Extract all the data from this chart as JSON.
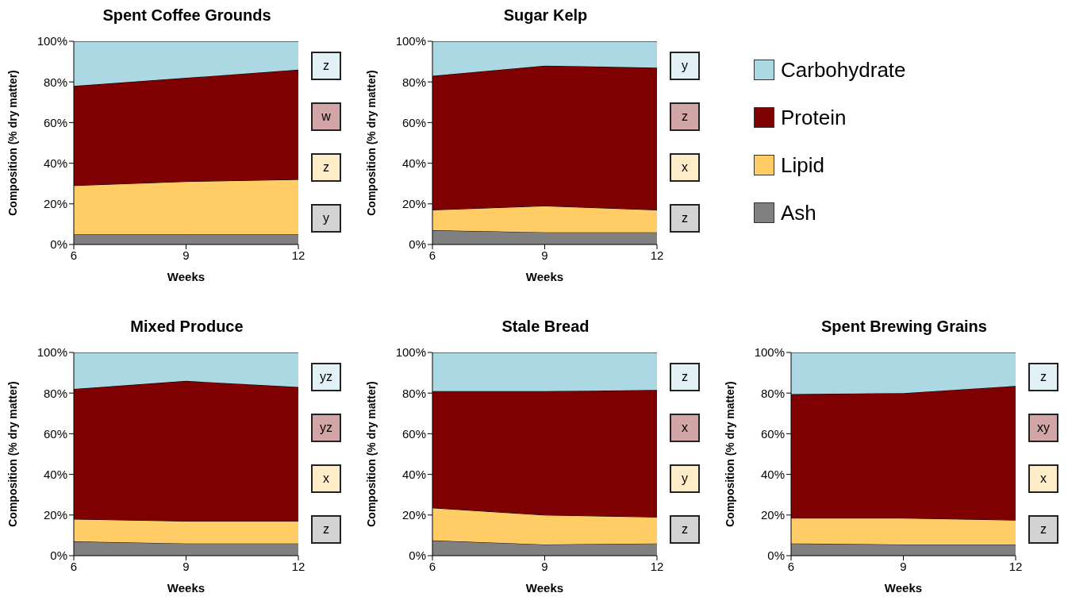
{
  "chart_data": [
    {
      "type": "area",
      "title": "Spent Coffee Grounds",
      "xlabel": "Weeks",
      "ylabel": "Composition (% dry matter)",
      "stacked": true,
      "x": [
        6,
        9,
        12
      ],
      "xlim": [
        6,
        12
      ],
      "xticks": [
        6,
        9,
        12
      ],
      "ylim": [
        0,
        100
      ],
      "yticks": [
        {
          "value": 0,
          "label": "0%"
        },
        {
          "value": 20,
          "label": "20%"
        },
        {
          "value": 40,
          "label": "40%"
        },
        {
          "value": 60,
          "label": "60%"
        },
        {
          "value": 80,
          "label": "80%"
        },
        {
          "value": 100,
          "label": "100%"
        }
      ],
      "grid": false,
      "legend": false,
      "series": [
        {
          "color": "#808080",
          "values": [
            5,
            5,
            5
          ]
        },
        {
          "color": "#ffcc66",
          "values": [
            24,
            26,
            27
          ]
        },
        {
          "color": "#7f0000",
          "values": [
            49,
            51,
            54
          ]
        },
        {
          "color": "#abd8e3",
          "values": [
            22,
            18,
            14
          ]
        }
      ],
      "annotations": [
        "z",
        "w",
        "z",
        "y"
      ]
    },
    {
      "type": "area",
      "title": "Sugar Kelp",
      "xlabel": "Weeks",
      "ylabel": "Composition (% dry matter)",
      "stacked": true,
      "x": [
        6,
        9,
        12
      ],
      "xlim": [
        6,
        12
      ],
      "xticks": [
        6,
        9,
        12
      ],
      "ylim": [
        0,
        100
      ],
      "yticks": [
        {
          "value": 0,
          "label": "0%"
        },
        {
          "value": 20,
          "label": "20%"
        },
        {
          "value": 40,
          "label": "40%"
        },
        {
          "value": 60,
          "label": "60%"
        },
        {
          "value": 80,
          "label": "80%"
        },
        {
          "value": 100,
          "label": "100%"
        }
      ],
      "grid": false,
      "legend": "right",
      "series": [
        {
          "name": "Ash",
          "color": "#808080",
          "values": [
            7,
            6,
            6
          ]
        },
        {
          "name": "Lipid",
          "color": "#ffcc66",
          "values": [
            10,
            13,
            11
          ]
        },
        {
          "name": "Protein",
          "color": "#7f0000",
          "values": [
            66,
            69,
            70
          ]
        },
        {
          "name": "Carbohydrate",
          "color": "#abd8e3",
          "values": [
            17,
            12,
            13
          ]
        }
      ],
      "annotations": [
        "y",
        "z",
        "x",
        "z"
      ]
    },
    {
      "type": "area",
      "title": "Mixed Produce",
      "xlabel": "Weeks",
      "ylabel": "Composition (% dry matter)",
      "stacked": true,
      "x": [
        6,
        9,
        12
      ],
      "xlim": [
        6,
        12
      ],
      "xticks": [
        6,
        9,
        12
      ],
      "ylim": [
        0,
        100
      ],
      "yticks": [
        {
          "value": 0,
          "label": "0%"
        },
        {
          "value": 20,
          "label": "20%"
        },
        {
          "value": 40,
          "label": "40%"
        },
        {
          "value": 60,
          "label": "60%"
        },
        {
          "value": 80,
          "label": "80%"
        },
        {
          "value": 100,
          "label": "100%"
        }
      ],
      "grid": false,
      "legend": false,
      "series": [
        {
          "color": "#808080",
          "values": [
            7,
            6,
            6
          ]
        },
        {
          "color": "#ffcc66",
          "values": [
            11,
            11,
            11
          ]
        },
        {
          "color": "#7f0000",
          "values": [
            64,
            69,
            66
          ]
        },
        {
          "color": "#abd8e3",
          "values": [
            18,
            14,
            17
          ]
        }
      ],
      "annotations": [
        "yz",
        "yz",
        "x",
        "z"
      ]
    },
    {
      "type": "area",
      "title": "Stale Bread",
      "xlabel": "Weeks",
      "ylabel": "Composition (% dry matter)",
      "stacked": true,
      "x": [
        6,
        9,
        12
      ],
      "xlim": [
        6,
        12
      ],
      "xticks": [
        6,
        9,
        12
      ],
      "ylim": [
        0,
        100
      ],
      "yticks": [
        {
          "value": 0,
          "label": "0%"
        },
        {
          "value": 20,
          "label": "20%"
        },
        {
          "value": 40,
          "label": "40%"
        },
        {
          "value": 60,
          "label": "60%"
        },
        {
          "value": 80,
          "label": "80%"
        },
        {
          "value": 100,
          "label": "100%"
        }
      ],
      "grid": false,
      "legend": false,
      "series": [
        {
          "color": "#808080",
          "values": [
            7.5,
            5.5,
            6
          ]
        },
        {
          "color": "#ffcc66",
          "values": [
            16,
            14.5,
            13
          ]
        },
        {
          "color": "#7f0000",
          "values": [
            57.5,
            61,
            62.5
          ]
        },
        {
          "color": "#abd8e3",
          "values": [
            19,
            19,
            18.5
          ]
        }
      ],
      "annotations": [
        "z",
        "x",
        "y",
        "z"
      ]
    },
    {
      "type": "area",
      "title": "Spent Brewing Grains",
      "xlabel": "Weeks",
      "ylabel": "Composition (% dry matter)",
      "stacked": true,
      "x": [
        6,
        9,
        12
      ],
      "xlim": [
        6,
        12
      ],
      "xticks": [
        6,
        9,
        12
      ],
      "ylim": [
        0,
        100
      ],
      "yticks": [
        {
          "value": 0,
          "label": "0%"
        },
        {
          "value": 20,
          "label": "20%"
        },
        {
          "value": 40,
          "label": "40%"
        },
        {
          "value": 60,
          "label": "60%"
        },
        {
          "value": 80,
          "label": "80%"
        },
        {
          "value": 100,
          "label": "100%"
        }
      ],
      "grid": false,
      "legend": false,
      "series": [
        {
          "color": "#808080",
          "values": [
            6,
            5.5,
            5.5
          ]
        },
        {
          "color": "#ffcc66",
          "values": [
            12.5,
            13,
            12
          ]
        },
        {
          "color": "#7f0000",
          "values": [
            61,
            61.5,
            66
          ]
        },
        {
          "color": "#abd8e3",
          "values": [
            20.5,
            20,
            16.5
          ]
        }
      ],
      "annotations": [
        "z",
        "xy",
        "x",
        "z"
      ]
    }
  ]
}
